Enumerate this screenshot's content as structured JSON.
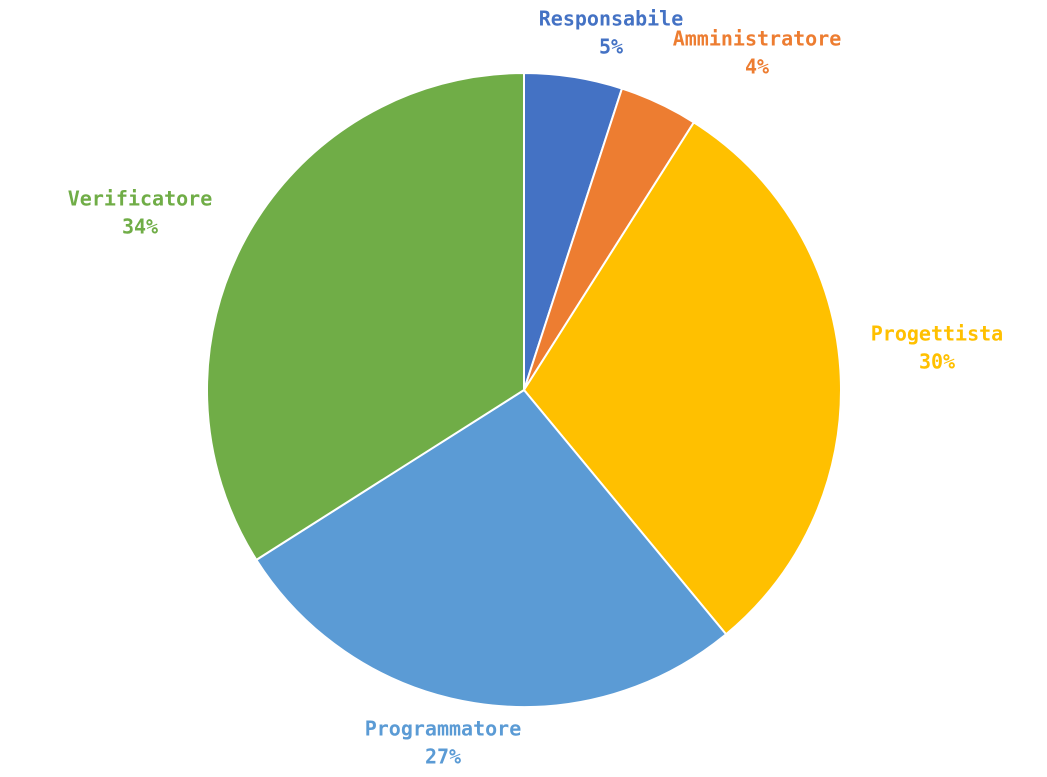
{
  "chart_data": {
    "type": "pie",
    "start_angle_deg": 0,
    "direction": "clockwise",
    "slices": [
      {
        "label": "Responsabile",
        "value": 5,
        "value_label": "5%",
        "color": "#4472C4"
      },
      {
        "label": "Amministratore",
        "value": 4,
        "value_label": "4%",
        "color": "#ED7D31"
      },
      {
        "label": "Progettista",
        "value": 30,
        "value_label": "30%",
        "color": "#FFC000"
      },
      {
        "label": "Programmatore",
        "value": 27,
        "value_label": "27%",
        "color": "#5B9BD5"
      },
      {
        "label": "Verificatore",
        "value": 34,
        "value_label": "34%",
        "color": "#70AD47"
      }
    ],
    "legend": "none",
    "data_labels": "outside"
  }
}
